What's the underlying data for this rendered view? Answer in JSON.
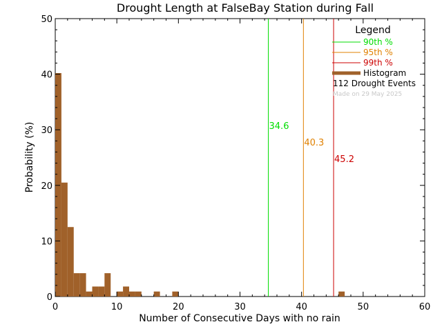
{
  "chart_data": {
    "type": "bar",
    "title": "Drought Length at FalseBay Station during Fall",
    "xlabel": "Number of Consecutive Days with no rain",
    "ylabel": "Probability (%)",
    "xlim": [
      0,
      60
    ],
    "ylim": [
      0,
      50
    ],
    "x_ticks": [
      0,
      10,
      20,
      30,
      40,
      50,
      60
    ],
    "y_ticks": [
      0,
      10,
      20,
      30,
      40,
      50
    ],
    "bin_width": 1,
    "histogram": {
      "color": "#a0612a",
      "bins": [
        {
          "x": 0,
          "value": 40.2
        },
        {
          "x": 1,
          "value": 20.5
        },
        {
          "x": 2,
          "value": 12.5
        },
        {
          "x": 3,
          "value": 4.2
        },
        {
          "x": 4,
          "value": 4.2
        },
        {
          "x": 5,
          "value": 0.9
        },
        {
          "x": 6,
          "value": 1.8
        },
        {
          "x": 7,
          "value": 1.8
        },
        {
          "x": 8,
          "value": 4.2
        },
        {
          "x": 10,
          "value": 0.9
        },
        {
          "x": 11,
          "value": 1.8
        },
        {
          "x": 12,
          "value": 0.9
        },
        {
          "x": 13,
          "value": 0.9
        },
        {
          "x": 16,
          "value": 0.9
        },
        {
          "x": 19,
          "value": 0.9
        },
        {
          "x": 46,
          "value": 0.9
        }
      ]
    },
    "percentiles": [
      {
        "label": "90th %",
        "value": 34.6,
        "value_label": "34.6",
        "color": "#00dd00"
      },
      {
        "label": "95th %",
        "value": 40.3,
        "value_label": "40.3",
        "color": "#e08000"
      },
      {
        "label": "99th %",
        "value": 45.2,
        "value_label": "45.2",
        "color": "#cc0000"
      }
    ],
    "legend": {
      "title": "Legend",
      "position": "top-right",
      "histogram_label": "Histogram",
      "events_label": "112 Drought Events",
      "made_on": "Made on 29 May 2025"
    },
    "grid": false
  }
}
